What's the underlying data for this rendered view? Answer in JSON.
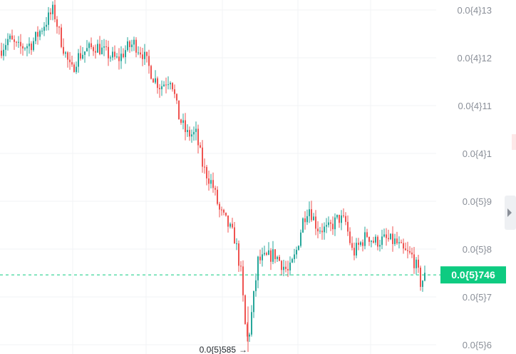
{
  "chart_data": {
    "type": "candlestick",
    "grid": true,
    "y_axis_position": "right",
    "y_ticks": [
      {
        "label": "0.0{4}13",
        "value": 0.00013
      },
      {
        "label": "0.0{4}12",
        "value": 0.00012
      },
      {
        "label": "0.0{4}11",
        "value": 0.00011
      },
      {
        "label": "0.0{4}1",
        "value": 0.0001
      },
      {
        "label": "0.0{5}9",
        "value": 9e-05
      },
      {
        "label": "0.0{5}8",
        "value": 8e-05
      },
      {
        "label": "0.0{5}7",
        "value": 7e-05
      },
      {
        "label": "0.0{5}6",
        "value": 6e-05
      }
    ],
    "current_price": {
      "label": "0.0{5}746",
      "value": 7.46e-05
    },
    "low_marker": {
      "label": "0.0{5}585",
      "value": 5.85e-05
    },
    "colors": {
      "up": "#26a69a",
      "down": "#ef5350",
      "price_tag": "#0ecb81",
      "grid": "#f2f3f5"
    },
    "keypoints": [
      [
        0,
        0.0001215
      ],
      [
        12,
        0.000124
      ],
      [
        25,
        0.000122
      ],
      [
        45,
        0.000123
      ],
      [
        62,
        0.000127
      ],
      [
        75,
        0.00013
      ],
      [
        85,
        0.000124
      ],
      [
        100,
        0.000117
      ],
      [
        108,
        0.00012
      ],
      [
        120,
        0.0001215
      ],
      [
        135,
        0.0001225
      ],
      [
        148,
        0.000121
      ],
      [
        165,
        0.0001195
      ],
      [
        178,
        0.000122
      ],
      [
        188,
        0.000123
      ],
      [
        200,
        0.000121
      ],
      [
        215,
        0.000116
      ],
      [
        225,
        0.000114
      ],
      [
        232,
        0.000115
      ],
      [
        240,
        0.000116
      ],
      [
        250,
        0.000108
      ],
      [
        262,
        0.000104
      ],
      [
        275,
        0.000104
      ],
      [
        285,
        9.7e-05
      ],
      [
        298,
        9.35e-05
      ],
      [
        308,
        8.8e-05
      ],
      [
        320,
        8.5e-05
      ],
      [
        330,
        8.2e-05
      ],
      [
        338,
        7.5e-05
      ],
      [
        344,
        6.4e-05
      ],
      [
        348,
        6.05e-05
      ],
      [
        356,
        7e-05
      ],
      [
        362,
        7.75e-05
      ],
      [
        372,
        7.8e-05
      ],
      [
        385,
        7.9e-05
      ],
      [
        395,
        7.7e-05
      ],
      [
        405,
        7.5e-05
      ],
      [
        415,
        7.9e-05
      ],
      [
        425,
        8.6e-05
      ],
      [
        433,
        8.9e-05
      ],
      [
        445,
        8.45e-05
      ],
      [
        460,
        8.4e-05
      ],
      [
        475,
        8.65e-05
      ],
      [
        485,
        8.55e-05
      ],
      [
        495,
        7.9e-05
      ],
      [
        505,
        8.1e-05
      ],
      [
        515,
        8.3e-05
      ],
      [
        525,
        8.15e-05
      ],
      [
        540,
        8.2e-05
      ],
      [
        555,
        8.15e-05
      ],
      [
        565,
        7.95e-05
      ],
      [
        578,
        7.85e-05
      ],
      [
        585,
        7.6e-05
      ],
      [
        590,
        7.3e-05
      ],
      [
        598,
        7.46e-05
      ]
    ]
  }
}
